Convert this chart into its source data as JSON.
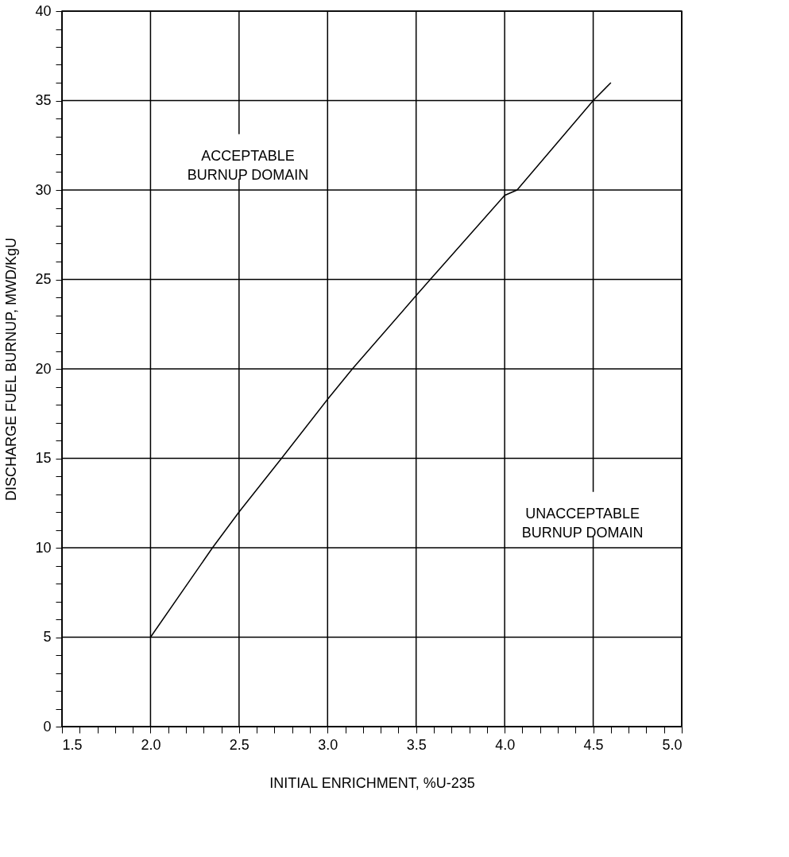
{
  "chart_data": {
    "type": "line",
    "xlabel": "INITIAL ENRICHMENT, %U-235",
    "ylabel": "DISCHARGE FUEL BURNUP, MWD/KgU",
    "annotations": [
      "ACCEPTABLE\nBURNUP DOMAIN",
      "UNACCEPTABLE\nBURNUP DOMAIN"
    ],
    "series": [
      {
        "color": "#000000",
        "x": [
          2.0,
          2.35,
          2.5,
          2.74,
          3.0,
          3.14,
          3.5,
          3.58,
          4.0,
          4.07,
          4.5,
          4.6
        ],
        "values": [
          5,
          10,
          12.0,
          15,
          18.3,
          20,
          24.1,
          25,
          29.7,
          30,
          35,
          36
        ]
      }
    ],
    "xlim": [
      1.5,
      5.0
    ],
    "xticks": [
      {
        "value": 1.5,
        "label": "1.5"
      },
      {
        "value": 1.6,
        "label": null
      },
      {
        "value": 1.7,
        "label": null
      },
      {
        "value": 1.8,
        "label": null
      },
      {
        "value": 1.9,
        "label": null
      },
      {
        "value": 2.0,
        "label": "2.0"
      },
      {
        "value": 2.1,
        "label": null
      },
      {
        "value": 2.2,
        "label": null
      },
      {
        "value": 2.3,
        "label": null
      },
      {
        "value": 2.4,
        "label": null
      },
      {
        "value": 2.5,
        "label": "2.5"
      },
      {
        "value": 2.6,
        "label": null
      },
      {
        "value": 2.7,
        "label": null
      },
      {
        "value": 2.8,
        "label": null
      },
      {
        "value": 2.9,
        "label": null
      },
      {
        "value": 3.0,
        "label": "3.0"
      },
      {
        "value": 3.1,
        "label": null
      },
      {
        "value": 3.2,
        "label": null
      },
      {
        "value": 3.3,
        "label": null
      },
      {
        "value": 3.4,
        "label": null
      },
      {
        "value": 3.5,
        "label": "3.5"
      },
      {
        "value": 3.6,
        "label": null
      },
      {
        "value": 3.7,
        "label": null
      },
      {
        "value": 3.8,
        "label": null
      },
      {
        "value": 3.9,
        "label": null
      },
      {
        "value": 4.0,
        "label": "4.0"
      },
      {
        "value": 4.1,
        "label": null
      },
      {
        "value": 4.2,
        "label": null
      },
      {
        "value": 4.3,
        "label": null
      },
      {
        "value": 4.4,
        "label": null
      },
      {
        "value": 4.5,
        "label": "4.5"
      },
      {
        "value": 4.6,
        "label": null
      },
      {
        "value": 4.7,
        "label": null
      },
      {
        "value": 4.8,
        "label": null
      },
      {
        "value": 4.9,
        "label": null
      },
      {
        "value": 5.0,
        "label": "5.0"
      }
    ],
    "ylim": [
      0,
      40
    ],
    "yticks": [
      0,
      {
        "value": 1,
        "label": null
      },
      {
        "value": 2,
        "label": null
      },
      {
        "value": 3,
        "label": null
      },
      {
        "value": 4,
        "label": null
      },
      5,
      {
        "value": 6,
        "label": null
      },
      {
        "value": 7,
        "label": null
      },
      {
        "value": 8,
        "label": null
      },
      {
        "value": 9,
        "label": null
      },
      10,
      {
        "value": 11,
        "label": null
      },
      {
        "value": 12,
        "label": null
      },
      {
        "value": 13,
        "label": null
      },
      {
        "value": 14,
        "label": null
      },
      15,
      {
        "value": 16,
        "label": null
      },
      {
        "value": 17,
        "label": null
      },
      {
        "value": 18,
        "label": null
      },
      {
        "value": 19,
        "label": null
      },
      20,
      {
        "value": 21,
        "label": null
      },
      {
        "value": 22,
        "label": null
      },
      {
        "value": 23,
        "label": null
      },
      {
        "value": 24,
        "label": null
      },
      25,
      {
        "value": 26,
        "label": null
      },
      {
        "value": 27,
        "label": null
      },
      {
        "value": 28,
        "label": null
      },
      {
        "value": 29,
        "label": null
      },
      30,
      {
        "value": 31,
        "label": null
      },
      {
        "value": 32,
        "label": null
      },
      {
        "value": 33,
        "label": null
      },
      {
        "value": 34,
        "label": null
      },
      35,
      {
        "value": 36,
        "label": null
      },
      {
        "value": 37,
        "label": null
      },
      {
        "value": 38,
        "label": null
      },
      {
        "value": 39,
        "label": null
      },
      40
    ],
    "grid": true,
    "marker": "none",
    "line_style": "solid"
  }
}
